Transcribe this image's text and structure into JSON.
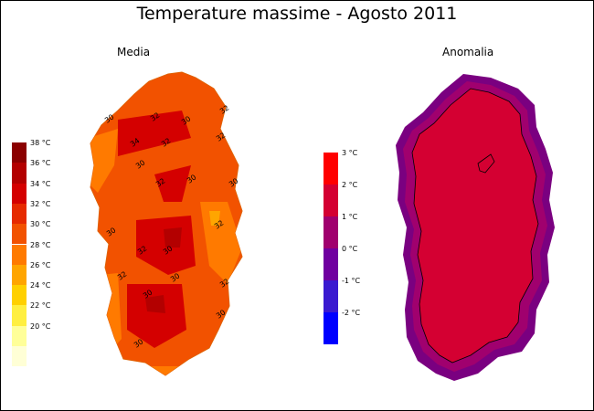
{
  "title": "Temperature massime - Agosto 2011",
  "maps": {
    "media": {
      "label": "Media",
      "legend": {
        "units": "°C",
        "items": [
          {
            "label": "38 °C",
            "color": "#8b0000"
          },
          {
            "label": "36 °C",
            "color": "#b30000"
          },
          {
            "label": "34 °C",
            "color": "#d40000"
          },
          {
            "label": "32 °C",
            "color": "#e62a00"
          },
          {
            "label": "30 °C",
            "color": "#f25200"
          },
          {
            "label": "28 °C",
            "color": "#ff7a00"
          },
          {
            "label": "26 °C",
            "color": "#ffa500"
          },
          {
            "label": "24 °C",
            "color": "#ffd000"
          },
          {
            "label": "22 °C",
            "color": "#ffef40"
          },
          {
            "label": "20 °C",
            "color": "#ffff99"
          },
          {
            "label": "",
            "color": "#ffffd6"
          }
        ]
      },
      "contour_labels": [
        "30",
        "32",
        "30",
        "32",
        "34",
        "32",
        "32",
        "30",
        "32",
        "30",
        "30",
        "30",
        "32",
        "30",
        "32",
        "32",
        "30",
        "30",
        "32",
        "30",
        "30"
      ]
    },
    "anomalia": {
      "label": "Anomalia",
      "legend": {
        "units": "°C",
        "items": [
          {
            "label": "3 °C",
            "color": "#ff0000"
          },
          {
            "label": "2 °C",
            "color": "#d40032"
          },
          {
            "label": "1 °C",
            "color": "#a0006e"
          },
          {
            "label": "0 °C",
            "color": "#7000a0"
          },
          {
            "label": "-1 °C",
            "color": "#3a1ad0"
          },
          {
            "label": "-2 °C",
            "color": "#0000ff"
          }
        ]
      }
    }
  }
}
